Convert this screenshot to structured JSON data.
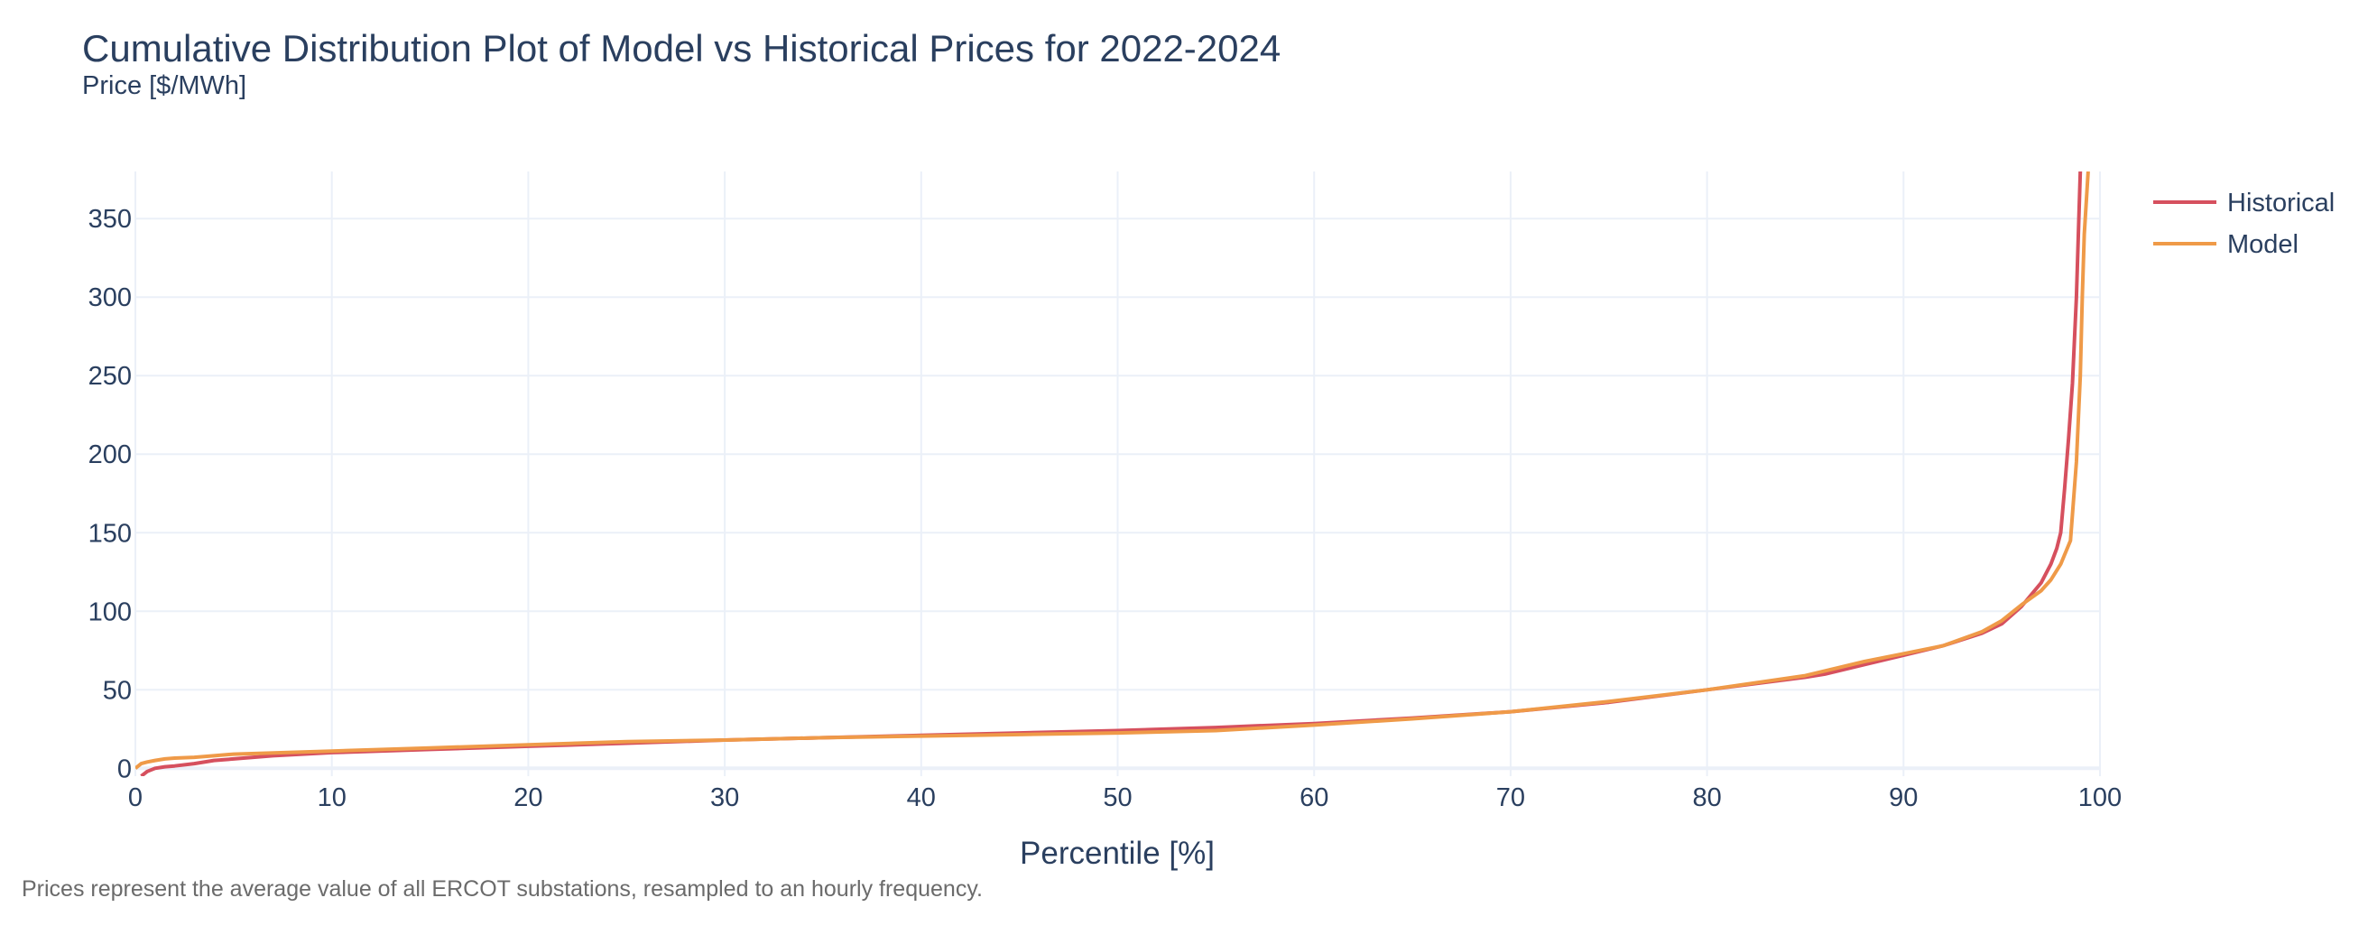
{
  "chart_data": {
    "type": "line",
    "title": "Cumulative Distribution Plot of Model vs Historical Prices for 2022-2024",
    "subtitle": "Price [$/MWh]",
    "xlabel": "Percentile [%]",
    "ylabel": "",
    "xlim": [
      0,
      100
    ],
    "ylim": [
      -5,
      380
    ],
    "x_ticks": [
      "0",
      "10",
      "20",
      "30",
      "40",
      "50",
      "60",
      "70",
      "80",
      "90",
      "100"
    ],
    "y_ticks": [
      "0",
      "50",
      "100",
      "150",
      "200",
      "250",
      "300",
      "350"
    ],
    "grid": true,
    "legend_position": "top-right",
    "footnote": "Prices represent the average value of all ERCOT substations, resampled to an hourly frequency.",
    "series": [
      {
        "name": "Historical",
        "color": "#d6505e",
        "x": [
          0.3,
          0.6,
          1,
          1.5,
          2,
          3,
          4,
          5,
          7,
          10,
          15,
          20,
          25,
          30,
          35,
          40,
          45,
          50,
          55,
          60,
          65,
          70,
          75,
          80,
          85,
          86,
          88,
          90,
          92,
          94,
          95,
          96,
          97,
          97.5,
          97.8,
          98,
          98.2,
          98.4,
          98.6,
          98.8,
          99
        ],
        "y": [
          -5,
          -2,
          0,
          1,
          1.5,
          3,
          5,
          6,
          8,
          10,
          12,
          14,
          16,
          18,
          19.5,
          21,
          22.5,
          24,
          26,
          28.5,
          32,
          36,
          42,
          50,
          58,
          60,
          66,
          72,
          78,
          86,
          92,
          103,
          118,
          130,
          140,
          150,
          178,
          210,
          245,
          300,
          380
        ]
      },
      {
        "name": "Model",
        "color": "#ef9a48",
        "x": [
          0,
          0.3,
          0.6,
          1,
          1.5,
          2,
          3,
          4,
          5,
          10,
          15,
          20,
          25,
          30,
          35,
          40,
          45,
          50,
          55,
          60,
          65,
          70,
          75,
          80,
          85,
          88,
          90,
          92,
          94,
          95,
          96,
          97,
          97.5,
          98,
          98.5,
          98.8,
          99,
          99.1,
          99.2,
          99.4
        ],
        "y": [
          0,
          3,
          4,
          5,
          6,
          6.5,
          7,
          8,
          9,
          11,
          13,
          15,
          17,
          18,
          19.5,
          20.5,
          21.5,
          22.5,
          24,
          27.5,
          31.5,
          36,
          42.5,
          50,
          59,
          68,
          73,
          78,
          87,
          94,
          104,
          113,
          120,
          130,
          145,
          195,
          250,
          300,
          340,
          380
        ]
      }
    ]
  }
}
